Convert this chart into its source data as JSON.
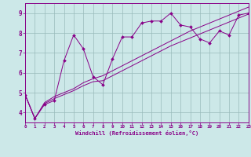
{
  "xlabel": "Windchill (Refroidissement éolien,°C)",
  "background_color": "#cce8e8",
  "line_color": "#880088",
  "grid_color": "#99bbbb",
  "xlim": [
    0,
    23
  ],
  "ylim": [
    3.5,
    9.5
  ],
  "yticks": [
    4,
    5,
    6,
    7,
    8,
    9
  ],
  "xticks": [
    0,
    1,
    2,
    3,
    4,
    5,
    6,
    7,
    8,
    9,
    10,
    11,
    12,
    13,
    14,
    15,
    16,
    17,
    18,
    19,
    20,
    21,
    22,
    23
  ],
  "s1_x": [
    0,
    1,
    2,
    3,
    4,
    5,
    6,
    7,
    8,
    9,
    10,
    11,
    12,
    13,
    14,
    15,
    16,
    17,
    18,
    19,
    20,
    21,
    22,
    23
  ],
  "s1_y": [
    4.9,
    3.7,
    4.4,
    4.6,
    6.6,
    7.9,
    7.2,
    5.8,
    5.4,
    6.7,
    7.8,
    7.8,
    8.5,
    8.6,
    8.6,
    9.0,
    8.4,
    8.3,
    7.7,
    7.5,
    8.1,
    7.9,
    8.9,
    9.0
  ],
  "s2_x": [
    0,
    1,
    2,
    3,
    4,
    5,
    6,
    7,
    8,
    9,
    10,
    11,
    12,
    13,
    14,
    15,
    16,
    17,
    18,
    19,
    20,
    21,
    22,
    23
  ],
  "s2_y": [
    4.9,
    3.7,
    4.5,
    4.8,
    5.0,
    5.2,
    5.5,
    5.7,
    5.85,
    6.1,
    6.35,
    6.6,
    6.85,
    7.1,
    7.35,
    7.6,
    7.85,
    8.1,
    8.3,
    8.5,
    8.7,
    8.9,
    9.1,
    9.3
  ],
  "s3_x": [
    0,
    1,
    2,
    3,
    4,
    5,
    6,
    7,
    8,
    9,
    10,
    11,
    12,
    13,
    14,
    15,
    16,
    17,
    18,
    19,
    20,
    21,
    22,
    23
  ],
  "s3_y": [
    4.9,
    3.7,
    4.45,
    4.7,
    4.9,
    5.1,
    5.35,
    5.55,
    5.6,
    5.85,
    6.1,
    6.35,
    6.6,
    6.85,
    7.1,
    7.35,
    7.55,
    7.75,
    7.95,
    8.15,
    8.35,
    8.55,
    8.75,
    8.95
  ]
}
